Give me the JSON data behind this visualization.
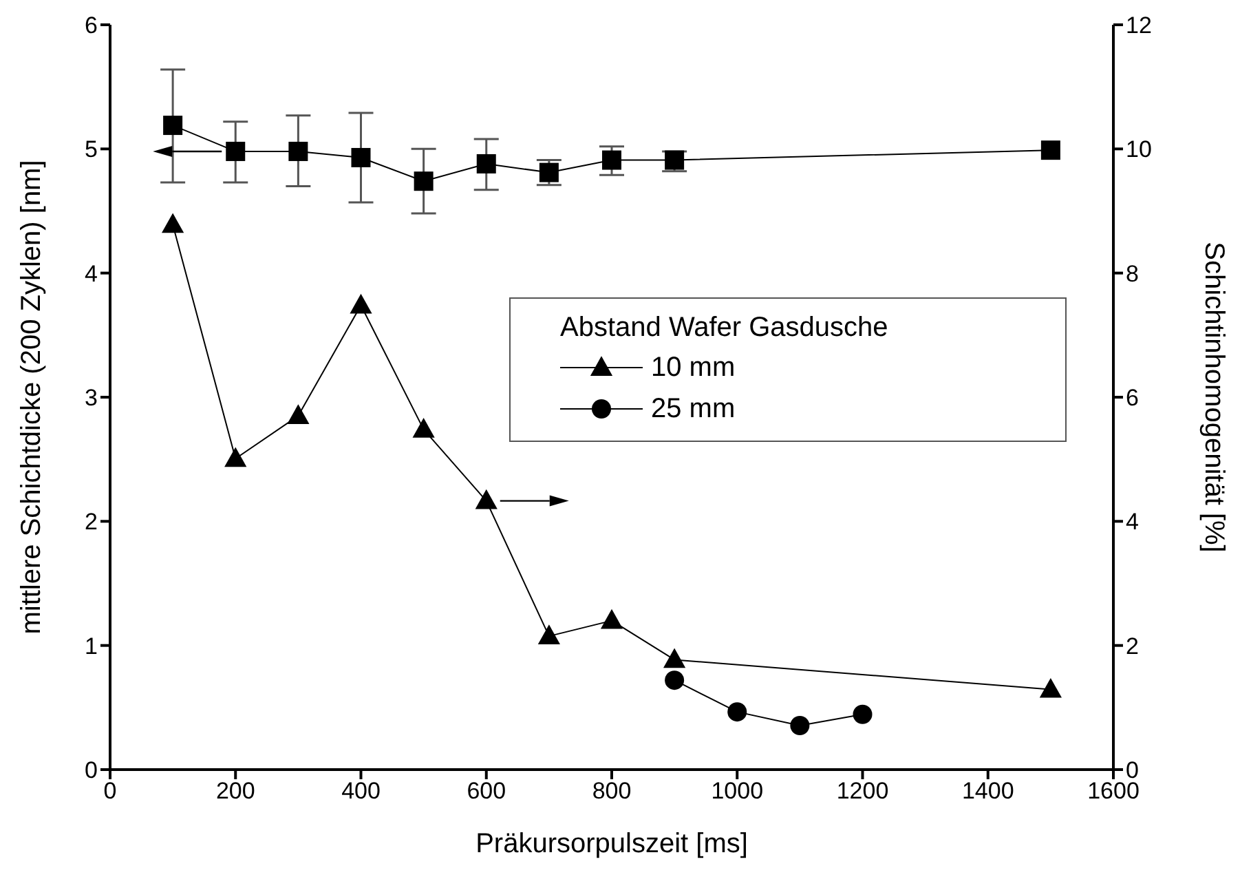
{
  "chart_data": {
    "type": "line",
    "xlabel": "Präkursorpulszeit  [ms]",
    "ylabel": "mittlere Schichtdicke (200 Zyklen) [nm]",
    "y2label": "Schichtinhomogenität [%]",
    "legend_title": "Abstand Wafer Gasdusche",
    "xlim": [
      0,
      1600
    ],
    "xticks": [
      0,
      200,
      400,
      600,
      800,
      1000,
      1200,
      1400,
      1600
    ],
    "ylim": [
      0,
      6
    ],
    "yticks": [
      0,
      1,
      2,
      3,
      4,
      5,
      6
    ],
    "y2lim": [
      0,
      12
    ],
    "y2ticks": [
      0,
      2,
      4,
      6,
      8,
      10,
      12
    ],
    "legend": "right",
    "grid": false,
    "line_style": "solid",
    "series": [
      {
        "color": "#000000",
        "marker": "square",
        "x": [
          100,
          200,
          300,
          400,
          500,
          600,
          700,
          800,
          900,
          1500
        ],
        "values": [
          5.19,
          4.98,
          4.98,
          4.93,
          4.74,
          4.88,
          4.81,
          4.91,
          4.91,
          4.99
        ],
        "errors": [
          [
            4.73,
            5.64
          ],
          [
            4.73,
            5.22
          ],
          [
            4.7,
            5.27
          ],
          [
            4.57,
            5.29
          ],
          [
            4.48,
            5.0
          ],
          [
            4.67,
            5.08
          ],
          [
            4.71,
            4.91
          ],
          [
            4.79,
            5.02
          ],
          [
            4.82,
            4.98
          ],
          null
        ]
      },
      {
        "name": "10 mm",
        "color": "#000000",
        "marker": "triangle",
        "axis": "y2",
        "x": [
          100,
          200,
          300,
          400,
          500,
          600,
          700,
          800,
          900,
          1500
        ],
        "values": [
          8.78,
          5.01,
          5.7,
          7.48,
          5.48,
          4.33,
          2.15,
          2.4,
          1.77,
          1.29
        ]
      },
      {
        "name": "25 mm",
        "color": "#000000",
        "marker": "circle",
        "axis": "y2",
        "x": [
          900,
          1000,
          1100,
          1200
        ],
        "values": [
          1.44,
          0.93,
          0.71,
          0.89
        ]
      }
    ]
  }
}
